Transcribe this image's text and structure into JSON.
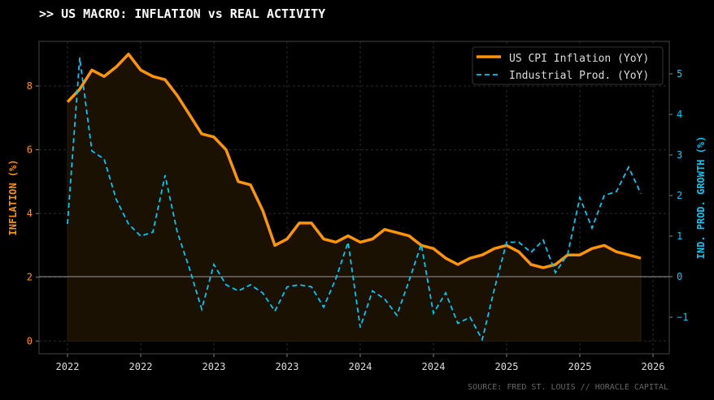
{
  "title": ">> US MACRO: INFLATION vs REAL ACTIVITY",
  "source": "SOURCE: FRED ST. LOUIS // HORACLE CAPITAL",
  "chart_data": {
    "type": "line",
    "x_ticks": [
      "2022",
      "2022",
      "2023",
      "2023",
      "2024",
      "2024",
      "2025",
      "2025",
      "2026"
    ],
    "x_start": "2022-01",
    "frequency": "monthly",
    "left_axis": {
      "label": "INFLATION (%)",
      "ticks": [
        0,
        2,
        4,
        6,
        8
      ],
      "ylim": [
        -0.4,
        9.4
      ],
      "color": "#ff9500"
    },
    "right_axis": {
      "label": "IND. PROD. GROWTH (%)",
      "ticks": [
        -1,
        0,
        1,
        2,
        3,
        4,
        5
      ],
      "ylim": [
        -1.9,
        5.8
      ],
      "color": "#00c8f0"
    },
    "grid": true,
    "legend_placement": "top-right",
    "zero_line": "right axis 0",
    "series": [
      {
        "name": "US CPI Inflation (YoY)",
        "axis": "left",
        "style": "solid",
        "fill": true,
        "color": "#ff9500",
        "values": [
          7.5,
          7.9,
          8.5,
          8.3,
          8.6,
          9.0,
          8.5,
          8.3,
          8.2,
          7.7,
          7.1,
          6.5,
          6.4,
          6.0,
          5.0,
          4.9,
          4.1,
          3.0,
          3.2,
          3.7,
          3.7,
          3.2,
          3.1,
          3.3,
          3.1,
          3.2,
          3.5,
          3.4,
          3.3,
          3.0,
          2.9,
          2.6,
          2.4,
          2.6,
          2.7,
          2.9,
          3.0,
          2.8,
          2.4,
          2.3,
          2.4,
          2.7,
          2.7,
          2.9,
          3.0,
          2.8,
          2.7,
          2.6
        ]
      },
      {
        "name": "Industrial Prod. (YoY)",
        "axis": "right",
        "style": "dashed",
        "color": "#00c8f0",
        "values": [
          1.3,
          5.4,
          3.1,
          2.9,
          1.9,
          1.3,
          1.0,
          1.1,
          2.5,
          1.1,
          0.2,
          -0.8,
          0.3,
          -0.2,
          -0.35,
          -0.2,
          -0.4,
          -0.85,
          -0.25,
          -0.2,
          -0.25,
          -0.75,
          -0.05,
          0.85,
          -1.25,
          -0.35,
          -0.55,
          -0.95,
          -0.1,
          0.8,
          -0.9,
          -0.4,
          -1.15,
          -1.0,
          -1.55,
          -0.3,
          0.85,
          0.85,
          0.6,
          0.9,
          0.1,
          0.55,
          1.95,
          1.2,
          2.0,
          2.1,
          2.7,
          2.05
        ]
      }
    ]
  }
}
